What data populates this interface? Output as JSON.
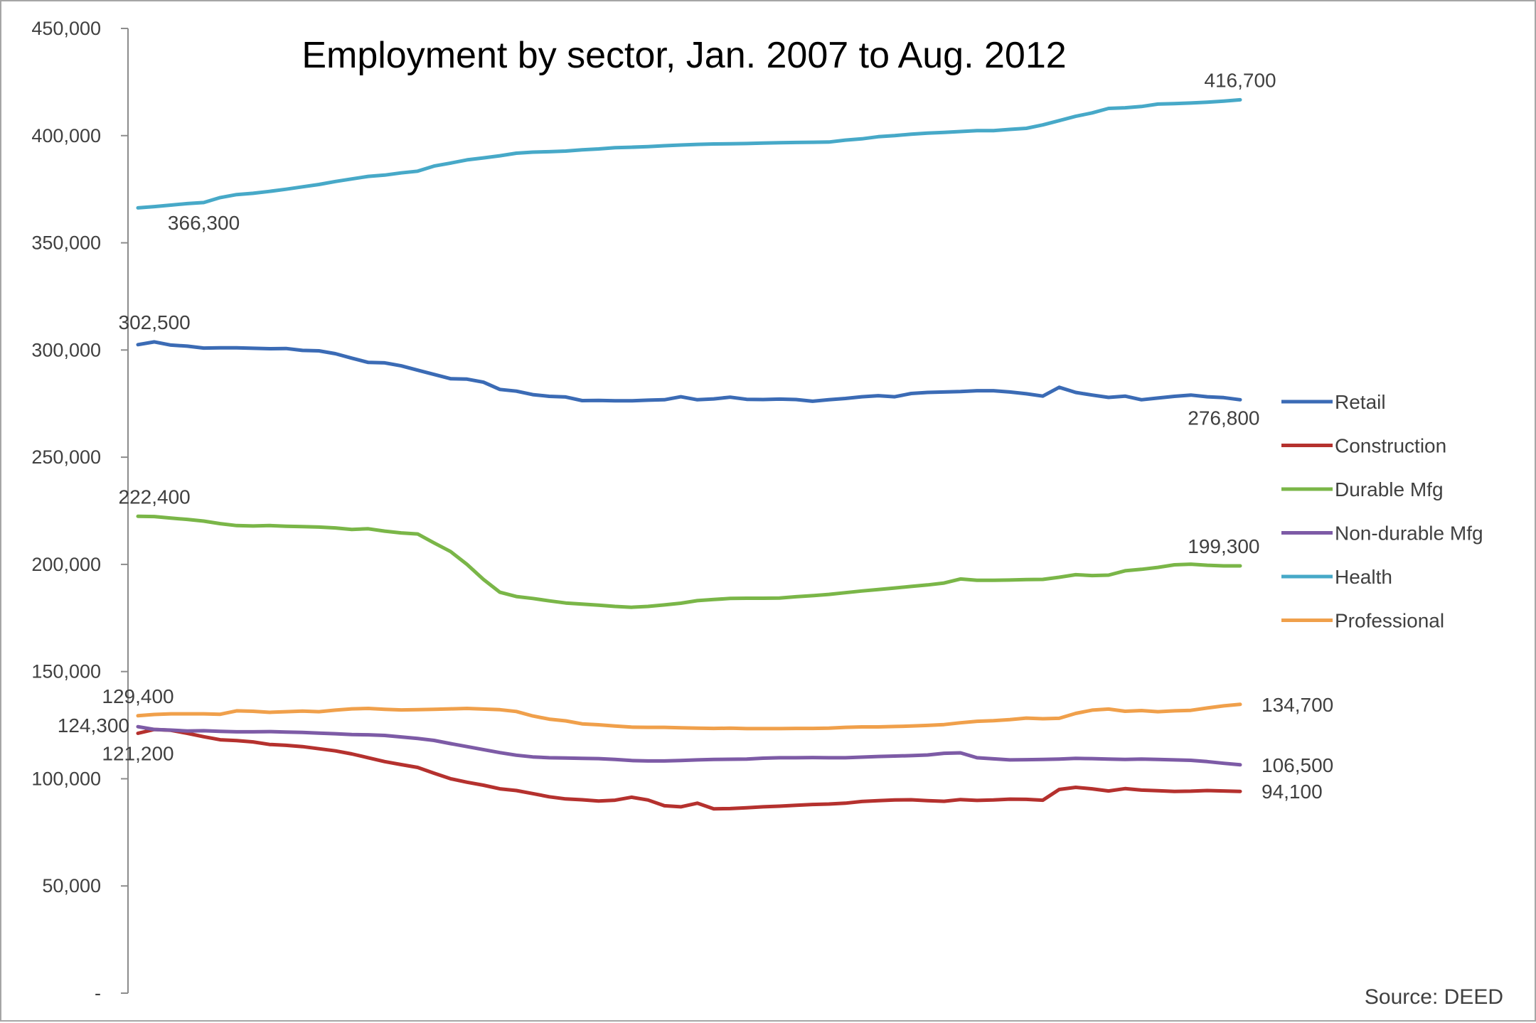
{
  "chart_data": {
    "type": "line",
    "title": "Employment by sector, Jan. 2007 to Aug. 2012",
    "source": "Source: DEED",
    "ylim": [
      0,
      450000
    ],
    "yticks": [
      0,
      50000,
      100000,
      150000,
      200000,
      250000,
      300000,
      350000,
      400000,
      450000
    ],
    "ytick_labels": [
      "-",
      "50,000",
      "100,000",
      "150,000",
      "200,000",
      "250,000",
      "300,000",
      "350,000",
      "400,000",
      "450,000"
    ],
    "grid": false,
    "legend_position": "right",
    "x_count": 68,
    "series": [
      {
        "name": "Retail",
        "color": "#3b6bb5",
        "values": [
          302500,
          303800,
          302300,
          301800,
          300900,
          301000,
          301000,
          300800,
          300600,
          300700,
          299800,
          299600,
          298300,
          296200,
          294200,
          294000,
          292600,
          290600,
          288600,
          286600,
          286400,
          285000,
          281600,
          280800,
          279200,
          278400,
          278100,
          276400,
          276500,
          276300,
          276300,
          276600,
          276800,
          278200,
          276800,
          277200,
          278000,
          277000,
          276900,
          277100,
          276900,
          276100,
          276800,
          277400,
          278200,
          278700,
          278200,
          279700,
          280200,
          280400,
          280600,
          281000,
          281000,
          280400,
          279600,
          278500,
          282600,
          280200,
          279000,
          277900,
          278500,
          276800,
          277600,
          278400,
          279000,
          278200,
          277800,
          276800
        ],
        "labels": [
          {
            "index": 1,
            "text": "302,500",
            "pos": "above"
          },
          {
            "index": 66,
            "text": "276,800",
            "pos": "below"
          }
        ]
      },
      {
        "name": "Construction",
        "color": "#b5312e",
        "values": [
          121200,
          123000,
          122600,
          121200,
          119600,
          118200,
          117800,
          117200,
          116000,
          115600,
          115000,
          114000,
          113000,
          111600,
          109800,
          108000,
          106600,
          105300,
          102600,
          100000,
          98400,
          97000,
          95300,
          94500,
          93100,
          91600,
          90600,
          90200,
          89600,
          90000,
          91400,
          90100,
          87400,
          86900,
          88600,
          86000,
          86100,
          86500,
          86900,
          87200,
          87600,
          88000,
          88200,
          88600,
          89400,
          89800,
          90100,
          90200,
          89800,
          89500,
          90300,
          89900,
          90100,
          90500,
          90400,
          90000,
          95000,
          96000,
          95300,
          94300,
          95400,
          94700,
          94400,
          94100,
          94200,
          94500,
          94300,
          94100
        ],
        "labels": [
          {
            "index": 0,
            "text": "121,200",
            "pos": "below"
          },
          {
            "index": 67,
            "text": "94,100",
            "pos": "right"
          }
        ]
      },
      {
        "name": "Durable Mfg",
        "color": "#7ab648",
        "values": [
          222400,
          222300,
          221600,
          221000,
          220200,
          219000,
          218100,
          217900,
          218100,
          217800,
          217600,
          217400,
          217000,
          216300,
          216600,
          215500,
          214700,
          214200,
          210000,
          206000,
          200000,
          193000,
          187000,
          185000,
          184100,
          183000,
          182000,
          181500,
          181000,
          180400,
          180000,
          180400,
          181100,
          181900,
          183100,
          183600,
          184100,
          184200,
          184200,
          184300,
          184900,
          185400,
          186000,
          186800,
          187600,
          188300,
          189000,
          189700,
          190400,
          191300,
          193200,
          192600,
          192600,
          192700,
          192900,
          193000,
          194000,
          195200,
          194800,
          195000,
          197000,
          197700,
          198600,
          199800,
          200100,
          199600,
          199300,
          199300
        ],
        "labels": [
          {
            "index": 1,
            "text": "222,400",
            "pos": "above"
          },
          {
            "index": 66,
            "text": "199,300",
            "pos": "above"
          }
        ]
      },
      {
        "name": "Non-durable Mfg",
        "color": "#7d5ba6",
        "values": [
          124300,
          123000,
          122700,
          122300,
          122400,
          122100,
          121900,
          121900,
          122000,
          121800,
          121600,
          121300,
          121000,
          120600,
          120500,
          120200,
          119500,
          118800,
          117900,
          116400,
          115000,
          113600,
          112200,
          111000,
          110200,
          109800,
          109700,
          109500,
          109400,
          109000,
          108500,
          108300,
          108300,
          108500,
          108800,
          109000,
          109100,
          109200,
          109600,
          109800,
          109800,
          109900,
          109800,
          109800,
          110100,
          110400,
          110600,
          110800,
          111100,
          111900,
          112100,
          109800,
          109300,
          108800,
          108900,
          109000,
          109200,
          109500,
          109400,
          109200,
          109000,
          109200,
          109000,
          108800,
          108600,
          108000,
          107200,
          106500
        ],
        "labels": [
          {
            "index": 0,
            "text": "124,300",
            "pos": "left"
          },
          {
            "index": 67,
            "text": "106,500",
            "pos": "right"
          }
        ]
      },
      {
        "name": "Health",
        "color": "#47a9c8",
        "values": [
          366300,
          366900,
          367600,
          368300,
          368800,
          371100,
          372500,
          373100,
          374000,
          375000,
          376100,
          377200,
          378600,
          379800,
          381000,
          381600,
          382600,
          383400,
          385800,
          387200,
          388700,
          389600,
          390600,
          391800,
          392300,
          392500,
          392800,
          393400,
          393800,
          394400,
          394600,
          394900,
          395300,
          395600,
          395900,
          396100,
          396200,
          396300,
          396500,
          396700,
          396800,
          396900,
          397000,
          397900,
          398500,
          399500,
          400000,
          400700,
          401200,
          401500,
          401900,
          402300,
          402300,
          402900,
          403400,
          405000,
          407000,
          409000,
          410600,
          412700,
          413000,
          413600,
          414700,
          414900,
          415200,
          415600,
          416100,
          416700
        ],
        "labels": [
          {
            "index": 4,
            "text": "366,300",
            "pos": "below"
          },
          {
            "index": 67,
            "text": "416,700",
            "pos": "above"
          }
        ]
      },
      {
        "name": "Professional",
        "color": "#f0a04b",
        "values": [
          129400,
          130000,
          130300,
          130300,
          130300,
          130100,
          131700,
          131500,
          131000,
          131300,
          131600,
          131300,
          132000,
          132600,
          132800,
          132400,
          132100,
          132200,
          132400,
          132600,
          132800,
          132500,
          132200,
          131400,
          129300,
          127800,
          127000,
          125600,
          125200,
          124600,
          124100,
          124000,
          124000,
          123800,
          123600,
          123500,
          123600,
          123400,
          123400,
          123400,
          123500,
          123500,
          123600,
          124000,
          124200,
          124200,
          124400,
          124600,
          124900,
          125300,
          126100,
          126800,
          127100,
          127600,
          128300,
          128000,
          128200,
          130500,
          132000,
          132500,
          131500,
          131800,
          131300,
          131700,
          131900,
          133000,
          134000,
          134700
        ],
        "labels": [
          {
            "index": 0,
            "text": "129,400",
            "pos": "above"
          },
          {
            "index": 67,
            "text": "134,700",
            "pos": "right"
          }
        ]
      }
    ]
  }
}
